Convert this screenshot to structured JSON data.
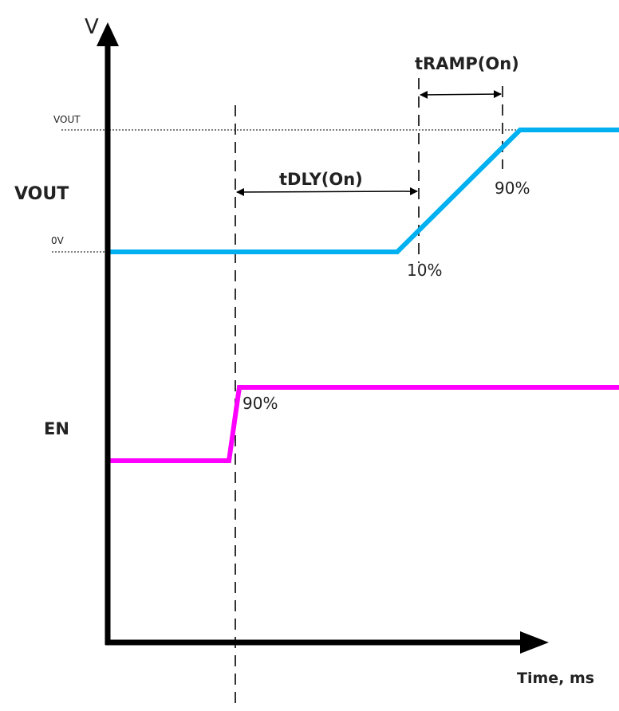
{
  "axes": {
    "y_label": "V",
    "x_label": "Time, ms"
  },
  "levels": {
    "vout_high": "VOUT",
    "zero": "0V"
  },
  "signals": {
    "vout": {
      "label": "VOUT",
      "color": "#00b0f0"
    },
    "en": {
      "label": "EN",
      "color": "#ff00ff"
    }
  },
  "annotations": {
    "tdly": "tDLY(On)",
    "tramp": "tRAMP(On)",
    "vout_90": "90%",
    "vout_10": "10%",
    "en_90": "90%"
  }
}
